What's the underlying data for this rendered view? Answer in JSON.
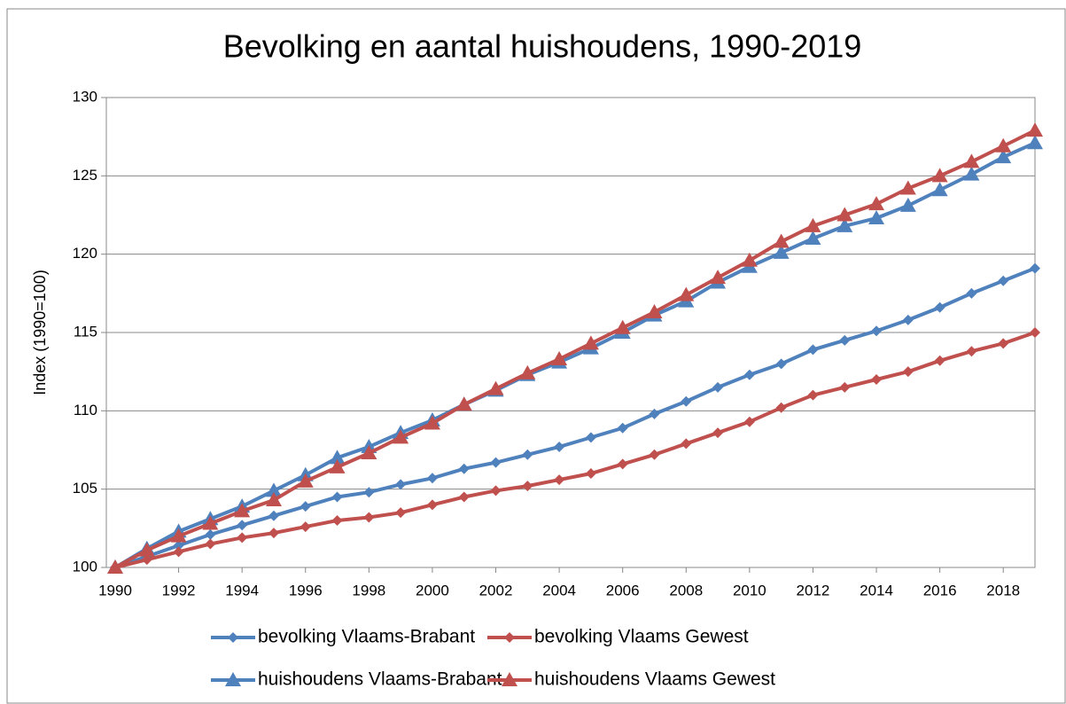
{
  "chart_data": {
    "type": "line",
    "title": "Bevolking en aantal huishoudens, 1990-2019",
    "y_label": "Index (1990=100)",
    "x": [
      1990,
      1991,
      1992,
      1993,
      1994,
      1995,
      1996,
      1997,
      1998,
      1999,
      2000,
      2001,
      2002,
      2003,
      2004,
      2005,
      2006,
      2007,
      2008,
      2009,
      2010,
      2011,
      2012,
      2013,
      2014,
      2015,
      2016,
      2017,
      2018,
      2019
    ],
    "xlim": [
      1990,
      2019
    ],
    "xticks": [
      1990,
      1992,
      1994,
      1996,
      1998,
      2000,
      2002,
      2004,
      2006,
      2008,
      2010,
      2012,
      2014,
      2016,
      2018
    ],
    "ylim": [
      100,
      130
    ],
    "yticks": [
      100,
      105,
      110,
      115,
      120,
      125,
      130
    ],
    "grid": true,
    "legend": "bottom",
    "series": [
      {
        "name": "bevolking Vlaams-Brabant",
        "color": "#4f81bd",
        "marker": "diamond",
        "values": [
          100,
          100.7,
          101.4,
          102.1,
          102.7,
          103.3,
          103.9,
          104.5,
          104.8,
          105.3,
          105.7,
          106.3,
          106.7,
          107.2,
          107.7,
          108.3,
          108.9,
          109.8,
          110.6,
          111.5,
          112.3,
          113.0,
          113.9,
          114.5,
          115.1,
          115.8,
          116.6,
          117.5,
          118.3,
          119.1
        ]
      },
      {
        "name": "bevolking Vlaams Gewest",
        "color": "#c0504d",
        "marker": "diamond",
        "values": [
          100,
          100.5,
          101.0,
          101.5,
          101.9,
          102.2,
          102.6,
          103.0,
          103.2,
          103.5,
          104.0,
          104.5,
          104.9,
          105.2,
          105.6,
          106.0,
          106.6,
          107.2,
          107.9,
          108.6,
          109.3,
          110.2,
          111.0,
          111.5,
          112.0,
          112.5,
          113.2,
          113.8,
          114.3,
          115.0
        ]
      },
      {
        "name": "huishoudens Vlaams-Brabant",
        "color": "#4f81bd",
        "marker": "triangle",
        "values": [
          100,
          101.2,
          102.3,
          103.1,
          103.9,
          104.9,
          105.9,
          107.0,
          107.7,
          108.6,
          109.4,
          110.4,
          111.3,
          112.3,
          113.1,
          114.0,
          115.0,
          116.1,
          117.0,
          118.2,
          119.2,
          120.1,
          121.0,
          121.8,
          122.3,
          123.1,
          124.1,
          125.1,
          126.2,
          127.1
        ]
      },
      {
        "name": "huishoudens Vlaams Gewest",
        "color": "#c0504d",
        "marker": "triangle",
        "values": [
          100,
          101.1,
          102.0,
          102.8,
          103.6,
          104.3,
          105.5,
          106.4,
          107.3,
          108.3,
          109.2,
          110.4,
          111.4,
          112.4,
          113.3,
          114.3,
          115.3,
          116.3,
          117.4,
          118.5,
          119.6,
          120.8,
          121.8,
          122.5,
          123.2,
          124.2,
          125.0,
          125.9,
          126.9,
          127.9
        ]
      }
    ]
  }
}
